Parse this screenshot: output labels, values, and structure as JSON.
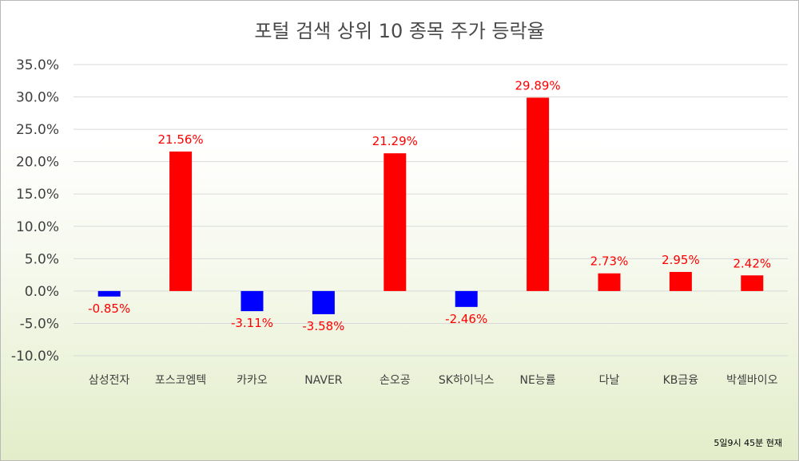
{
  "chart_data": {
    "type": "bar",
    "title": "포털 검색 상위 10 종목 주가 등락율",
    "categories": [
      "삼성전자",
      "포스코엠텍",
      "카카오",
      "NAVER",
      "손오공",
      "SK하이닉스",
      "NE능률",
      "다날",
      "KB금융",
      "박셀바이오"
    ],
    "values": [
      -0.85,
      21.56,
      -3.11,
      -3.58,
      21.29,
      -2.46,
      29.89,
      2.73,
      2.95,
      2.42
    ],
    "data_labels": [
      "-0.85%",
      "21.56%",
      "-3.11%",
      "-3.58%",
      "21.29%",
      "-2.46%",
      "29.89%",
      "2.73%",
      "2.95%",
      "2.42%"
    ],
    "ylim": [
      -10,
      35
    ],
    "ytick_values": [
      35,
      30,
      25,
      20,
      15,
      10,
      5,
      0,
      -5,
      -10
    ],
    "ytick_labels": [
      "35.0%",
      "30.0%",
      "25.0%",
      "20.0%",
      "15.0%",
      "10.0%",
      "5.0%",
      "0.0%",
      "-5.0%",
      "-10.0%"
    ],
    "xlabel": "",
    "ylabel": "",
    "grid": true,
    "colors": {
      "positive": "#ff0000",
      "negative": "#0000ff",
      "label": "#ff0000",
      "grid": "#d9d9d9"
    }
  },
  "footnote": "5일9시 45분 현재"
}
